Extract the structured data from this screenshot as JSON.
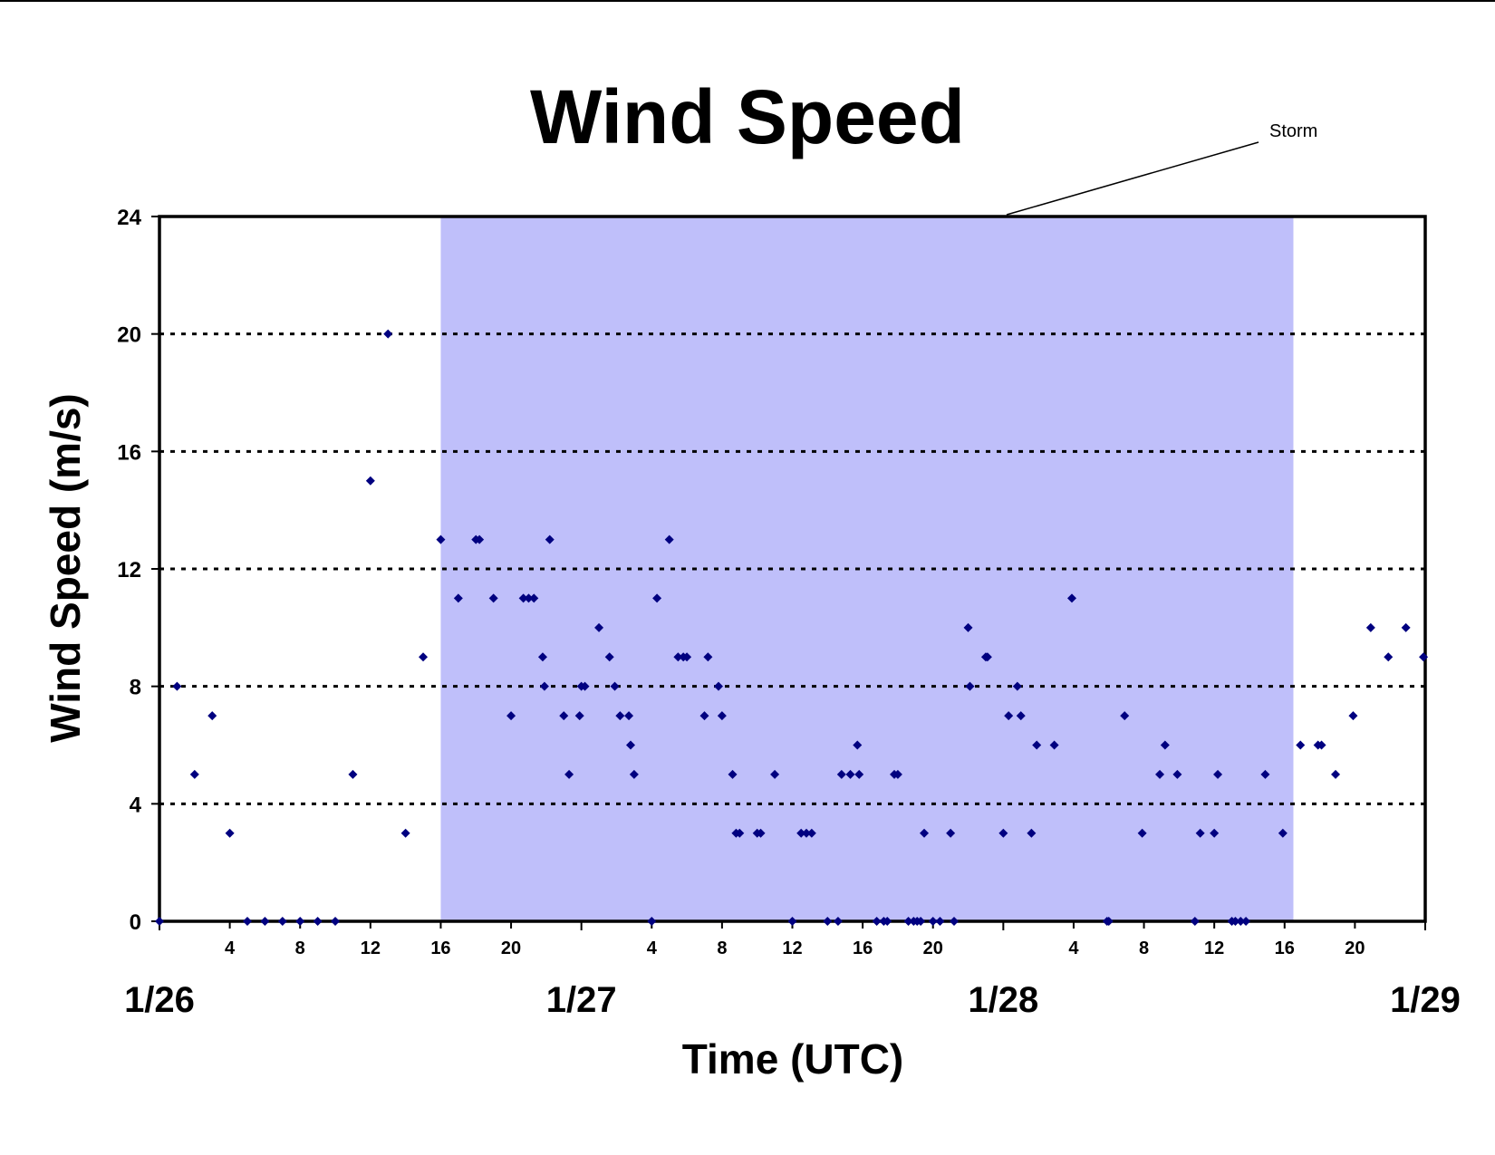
{
  "chart_data": {
    "type": "scatter",
    "title": "Wind Speed",
    "xlabel": "Time (UTC)",
    "ylabel": "Wind Speed (m/s)",
    "ylim": [
      0,
      24
    ],
    "yticks": [
      0,
      4,
      8,
      12,
      16,
      20,
      24
    ],
    "x_unit": "hours from 1/26 00:00 UTC",
    "xlim": [
      0,
      72
    ],
    "grid": "horizontal dotted",
    "legend": "none",
    "date_ticks": [
      {
        "label": "1/26",
        "x": 0
      },
      {
        "label": "1/27",
        "x": 24
      },
      {
        "label": "1/28",
        "x": 48
      },
      {
        "label": "1/29",
        "x": 72
      }
    ],
    "hour_ticks": [
      {
        "label": "4",
        "x": 4
      },
      {
        "label": "8",
        "x": 8
      },
      {
        "label": "12",
        "x": 12
      },
      {
        "label": "16",
        "x": 16
      },
      {
        "label": "20",
        "x": 20
      },
      {
        "label": "4",
        "x": 28
      },
      {
        "label": "8",
        "x": 32
      },
      {
        "label": "12",
        "x": 36
      },
      {
        "label": "16",
        "x": 40
      },
      {
        "label": "20",
        "x": 44
      },
      {
        "label": "4",
        "x": 52
      },
      {
        "label": "8",
        "x": 56
      },
      {
        "label": "12",
        "x": 60
      },
      {
        "label": "16",
        "x": 64
      },
      {
        "label": "20",
        "x": 68
      }
    ],
    "shaded_region": {
      "label": "Storm",
      "x_start": 16,
      "x_end": 64.5,
      "color": "#bfbffa"
    },
    "annotation": "Storm",
    "marker_color": "#000080",
    "series": [
      {
        "points": [
          [
            0,
            0
          ],
          [
            1,
            8
          ],
          [
            2,
            5
          ],
          [
            3,
            7
          ],
          [
            4,
            3
          ],
          [
            5,
            0
          ],
          [
            6,
            0
          ],
          [
            7,
            0
          ],
          [
            8,
            0
          ],
          [
            9,
            0
          ],
          [
            10,
            0
          ],
          [
            11,
            5
          ],
          [
            12,
            15
          ],
          [
            13,
            20
          ],
          [
            14,
            3
          ],
          [
            15,
            9
          ],
          [
            16,
            13
          ],
          [
            17,
            11
          ],
          [
            18,
            13
          ],
          [
            18.2,
            13
          ],
          [
            19,
            11
          ],
          [
            20,
            7
          ],
          [
            20.7,
            11
          ],
          [
            21,
            11
          ],
          [
            21.3,
            11
          ],
          [
            21.8,
            9
          ],
          [
            21.9,
            8
          ],
          [
            22.2,
            13
          ],
          [
            23,
            7
          ],
          [
            23.3,
            5
          ],
          [
            23.9,
            7
          ],
          [
            24,
            8
          ],
          [
            24.2,
            8
          ],
          [
            25,
            10
          ],
          [
            25.6,
            9
          ],
          [
            25.9,
            8
          ],
          [
            26.2,
            7
          ],
          [
            26.7,
            7
          ],
          [
            26.8,
            6
          ],
          [
            27,
            5
          ],
          [
            28,
            0
          ],
          [
            28.3,
            11
          ],
          [
            29,
            13
          ],
          [
            29.5,
            9
          ],
          [
            29.8,
            9
          ],
          [
            30,
            9
          ],
          [
            31,
            7
          ],
          [
            31.2,
            9
          ],
          [
            31.8,
            8
          ],
          [
            32,
            7
          ],
          [
            32.6,
            5
          ],
          [
            32.8,
            3
          ],
          [
            33,
            3
          ],
          [
            34,
            3
          ],
          [
            34.2,
            3
          ],
          [
            35,
            5
          ],
          [
            36,
            0
          ],
          [
            36.5,
            3
          ],
          [
            36.8,
            3
          ],
          [
            37.1,
            3
          ],
          [
            38,
            0
          ],
          [
            38.6,
            0
          ],
          [
            38.8,
            5
          ],
          [
            39.3,
            5
          ],
          [
            39.7,
            6
          ],
          [
            39.8,
            5
          ],
          [
            40.8,
            0
          ],
          [
            41.2,
            0
          ],
          [
            41.4,
            0
          ],
          [
            41.8,
            5
          ],
          [
            42,
            5
          ],
          [
            42.6,
            0
          ],
          [
            42.9,
            0
          ],
          [
            43.1,
            0
          ],
          [
            43.3,
            0
          ],
          [
            43.5,
            3
          ],
          [
            44,
            0
          ],
          [
            44.4,
            0
          ],
          [
            45,
            3
          ],
          [
            45.2,
            0
          ],
          [
            46,
            10
          ],
          [
            46.1,
            8
          ],
          [
            47,
            9
          ],
          [
            47.1,
            9
          ],
          [
            48,
            3
          ],
          [
            48.3,
            7
          ],
          [
            48.8,
            8
          ],
          [
            49,
            7
          ],
          [
            49.6,
            3
          ],
          [
            49.9,
            6
          ],
          [
            50.9,
            6
          ],
          [
            51.9,
            11
          ],
          [
            53.9,
            0
          ],
          [
            54,
            0
          ],
          [
            54.9,
            7
          ],
          [
            55.9,
            3
          ],
          [
            56.9,
            5
          ],
          [
            57.2,
            6
          ],
          [
            57.9,
            5
          ],
          [
            58.9,
            0
          ],
          [
            59.2,
            3
          ],
          [
            60,
            3
          ],
          [
            60.2,
            5
          ],
          [
            61,
            0
          ],
          [
            61.2,
            0
          ],
          [
            61.5,
            0
          ],
          [
            61.8,
            0
          ],
          [
            62.9,
            5
          ],
          [
            63.9,
            3
          ],
          [
            64.9,
            6
          ],
          [
            65.9,
            6
          ],
          [
            66.1,
            6
          ],
          [
            66.9,
            5
          ],
          [
            67.9,
            7
          ],
          [
            68.9,
            10
          ],
          [
            69.9,
            9
          ],
          [
            70.9,
            10
          ],
          [
            71.9,
            9
          ]
        ]
      }
    ]
  }
}
